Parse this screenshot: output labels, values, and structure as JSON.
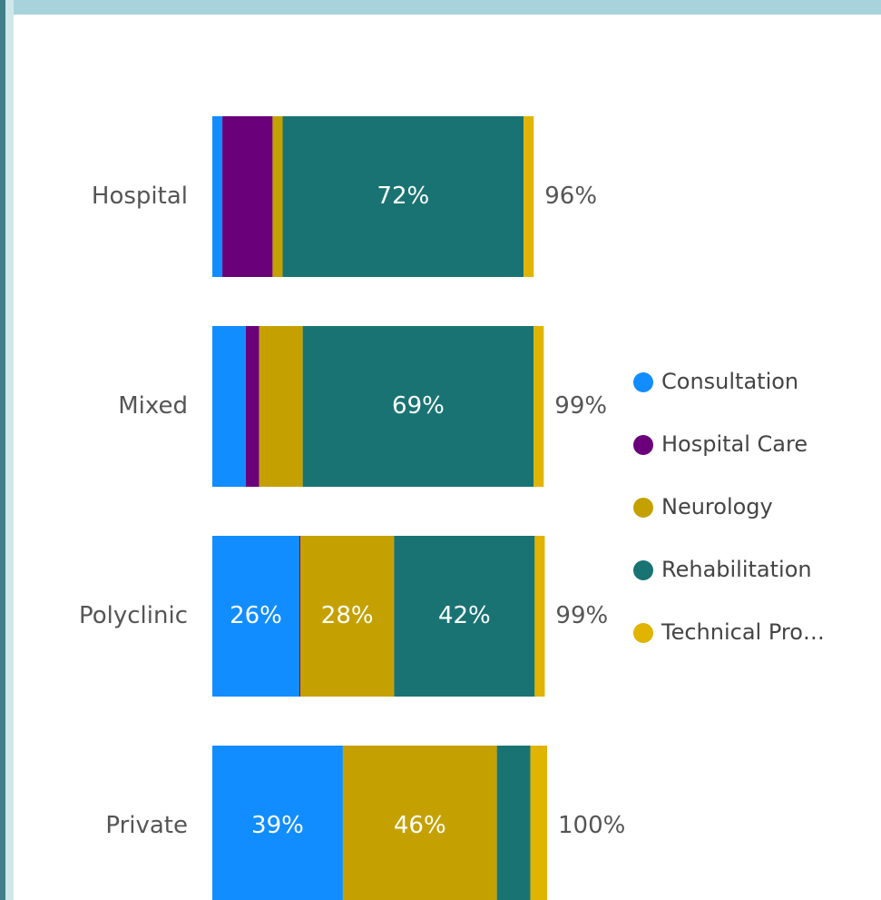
{
  "chart_data": {
    "type": "stacked_bar_horizontal",
    "categories": [
      "Hospital",
      "Mixed",
      "Polyclinic",
      "Private"
    ],
    "xlim": [
      0,
      100
    ],
    "series": [
      {
        "name": "Consultation",
        "color": "#118dff",
        "values": [
          3,
          10,
          26,
          39
        ],
        "value_labels": [
          null,
          null,
          "26%",
          "39%"
        ]
      },
      {
        "name": "Hospital Care",
        "color": "#6b007b",
        "values": [
          15,
          4,
          0.3,
          0
        ],
        "value_labels": [
          null,
          null,
          null,
          null
        ]
      },
      {
        "name": "Neurology",
        "color": "#c4a100",
        "values": [
          3,
          13,
          28,
          46
        ],
        "value_labels": [
          null,
          null,
          "28%",
          "46%"
        ]
      },
      {
        "name": "Rehabilitation",
        "color": "#1a7373",
        "values": [
          72,
          69,
          42,
          10
        ],
        "value_labels": [
          "72%",
          "69%",
          "42%",
          null
        ]
      },
      {
        "name": "Technical Pro…",
        "color": "#e0b400",
        "values": [
          3,
          3,
          3,
          5
        ],
        "value_labels": [
          null,
          null,
          null,
          null
        ]
      }
    ],
    "totals": [
      96,
      99,
      99,
      100
    ],
    "total_labels": [
      "96%",
      "99%",
      "99%",
      "100%"
    ],
    "legend": "right"
  }
}
